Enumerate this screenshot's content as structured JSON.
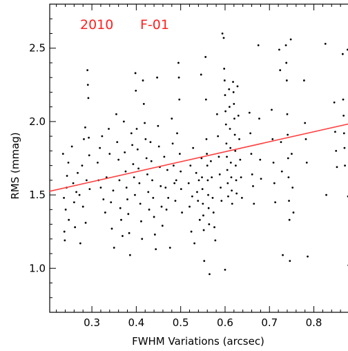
{
  "chart_data": {
    "type": "scatter",
    "title": "",
    "xlabel": "FWHM Variations (arcsec)",
    "ylabel": "RMS (mmag)",
    "xlim": [
      0.205,
      0.88
    ],
    "ylim": [
      0.7,
      2.8
    ],
    "xticks": [
      0.3,
      0.4,
      0.5,
      0.6,
      0.7,
      0.8
    ],
    "xtick_labels": [
      "0.3",
      "0.4",
      "0.5",
      "0.6",
      "0.7",
      "0.8"
    ],
    "yticks": [
      1.0,
      1.5,
      2.0,
      2.5
    ],
    "ytick_labels": [
      "1.0",
      "1.5",
      "2.0",
      "2.5"
    ],
    "grid": false,
    "annotations": [
      {
        "text": "2010",
        "color": "#ff2020"
      },
      {
        "text": "F-01",
        "color": "#ff2020"
      }
    ],
    "fit_line": {
      "color": "#ff4040",
      "x": [
        0.205,
        0.88
      ],
      "y": [
        1.525,
        1.985
      ]
    },
    "series": [
      {
        "color": "#000000",
        "points": [
          [
            0.235,
            1.78
          ],
          [
            0.237,
            1.48
          ],
          [
            0.238,
            1.25
          ],
          [
            0.239,
            1.19
          ],
          [
            0.241,
            1.4
          ],
          [
            0.243,
            1.55
          ],
          [
            0.244,
            1.63
          ],
          [
            0.247,
            1.72
          ],
          [
            0.248,
            1.33
          ],
          [
            0.255,
            1.83
          ],
          [
            0.258,
            1.58
          ],
          [
            0.26,
            1.45
          ],
          [
            0.262,
            1.28
          ],
          [
            0.265,
            1.52
          ],
          [
            0.268,
            1.65
          ],
          [
            0.272,
            1.5
          ],
          [
            0.274,
            1.17
          ],
          [
            0.278,
            1.7
          ],
          [
            0.28,
            1.42
          ],
          [
            0.282,
            1.88
          ],
          [
            0.285,
            1.96
          ],
          [
            0.286,
            1.31
          ],
          [
            0.288,
            1.6
          ],
          [
            0.29,
            2.35
          ],
          [
            0.291,
            2.25
          ],
          [
            0.292,
            2.16
          ],
          [
            0.293,
            1.89
          ],
          [
            0.294,
            1.77
          ],
          [
            0.295,
            1.54
          ],
          [
            0.313,
            1.72
          ],
          [
            0.315,
            1.6
          ],
          [
            0.318,
            1.82
          ],
          [
            0.32,
            1.55
          ],
          [
            0.323,
            1.9
          ],
          [
            0.326,
            1.47
          ],
          [
            0.33,
            1.38
          ],
          [
            0.333,
            1.62
          ],
          [
            0.338,
            1.95
          ],
          [
            0.34,
            1.78
          ],
          [
            0.343,
            1.45
          ],
          [
            0.345,
            1.27
          ],
          [
            0.348,
            1.53
          ],
          [
            0.35,
            1.14
          ],
          [
            0.355,
            2.05
          ],
          [
            0.357,
            1.86
          ],
          [
            0.36,
            1.74
          ],
          [
            0.362,
            1.6
          ],
          [
            0.364,
            1.41
          ],
          [
            0.366,
            1.33
          ],
          [
            0.369,
            1.22
          ],
          [
            0.372,
            2.0
          ],
          [
            0.374,
            1.79
          ],
          [
            0.376,
            1.66
          ],
          [
            0.378,
            1.55
          ],
          [
            0.38,
            1.47
          ],
          [
            0.382,
            1.37
          ],
          [
            0.384,
            1.24
          ],
          [
            0.386,
            1.09
          ],
          [
            0.389,
            1.92
          ],
          [
            0.391,
            1.84
          ],
          [
            0.393,
            1.71
          ],
          [
            0.395,
            1.62
          ],
          [
            0.397,
            1.5
          ],
          [
            0.398,
            2.33
          ],
          [
            0.399,
            2.21
          ],
          [
            0.401,
            1.95
          ],
          [
            0.403,
            1.81
          ],
          [
            0.405,
            1.68
          ],
          [
            0.407,
            1.58
          ],
          [
            0.409,
            1.44
          ],
          [
            0.411,
            1.32
          ],
          [
            0.413,
            1.2
          ],
          [
            0.415,
            2.28
          ],
          [
            0.417,
            2.12
          ],
          [
            0.419,
            1.99
          ],
          [
            0.421,
            1.88
          ],
          [
            0.423,
            1.75
          ],
          [
            0.425,
            1.64
          ],
          [
            0.427,
            1.52
          ],
          [
            0.429,
            1.4
          ],
          [
            0.432,
            1.86
          ],
          [
            0.434,
            1.73
          ],
          [
            0.436,
            1.6
          ],
          [
            0.438,
            1.48
          ],
          [
            0.44,
            1.35
          ],
          [
            0.442,
            1.23
          ],
          [
            0.444,
            1.13
          ],
          [
            0.447,
            2.3
          ],
          [
            0.449,
            1.97
          ],
          [
            0.451,
            1.83
          ],
          [
            0.453,
            1.69
          ],
          [
            0.455,
            1.56
          ],
          [
            0.457,
            1.42
          ],
          [
            0.459,
            1.29
          ],
          [
            0.463,
            1.76
          ],
          [
            0.466,
            1.55
          ],
          [
            0.468,
            1.4
          ],
          [
            0.47,
            1.67
          ],
          [
            0.472,
            1.48
          ],
          [
            0.476,
            1.14
          ],
          [
            0.48,
            2.02
          ],
          [
            0.482,
            1.85
          ],
          [
            0.484,
            1.7
          ],
          [
            0.486,
            1.58
          ],
          [
            0.488,
            1.46
          ],
          [
            0.49,
            1.6
          ],
          [
            0.492,
            1.92
          ],
          [
            0.495,
            2.4
          ],
          [
            0.496,
            2.3
          ],
          [
            0.497,
            2.15
          ],
          [
            0.498,
            1.78
          ],
          [
            0.5,
            1.66
          ],
          [
            0.501,
            1.54
          ],
          [
            0.503,
            1.38
          ],
          [
            0.518,
            1.58
          ],
          [
            0.52,
            1.42
          ],
          [
            0.522,
            1.7
          ],
          [
            0.524,
            1.25
          ],
          [
            0.526,
            1.49
          ],
          [
            0.528,
            1.82
          ],
          [
            0.531,
            1.17
          ],
          [
            0.535,
            1.65
          ],
          [
            0.537,
            1.52
          ],
          [
            0.539,
            1.46
          ],
          [
            0.541,
            1.6
          ],
          [
            0.543,
            1.33
          ],
          [
            0.546,
            2.32
          ],
          [
            0.547,
            1.75
          ],
          [
            0.548,
            1.62
          ],
          [
            0.549,
            1.54
          ],
          [
            0.55,
            1.44
          ],
          [
            0.551,
            1.36
          ],
          [
            0.552,
            1.26
          ],
          [
            0.553,
            1.05
          ],
          [
            0.556,
            2.44
          ],
          [
            0.557,
            2.15
          ],
          [
            0.558,
            1.88
          ],
          [
            0.559,
            1.78
          ],
          [
            0.56,
            1.7
          ],
          [
            0.561,
            1.6
          ],
          [
            0.562,
            1.5
          ],
          [
            0.563,
            1.41
          ],
          [
            0.564,
            1.3
          ],
          [
            0.565,
            0.96
          ],
          [
            0.568,
            1.73
          ],
          [
            0.57,
            1.62
          ],
          [
            0.572,
            1.48
          ],
          [
            0.574,
            1.38
          ],
          [
            0.576,
            1.28
          ],
          [
            0.578,
            1.19
          ],
          [
            0.582,
            2.05
          ],
          [
            0.584,
            1.9
          ],
          [
            0.586,
            1.76
          ],
          [
            0.588,
            1.64
          ],
          [
            0.59,
            1.55
          ],
          [
            0.592,
            1.46
          ],
          [
            0.594,
            2.6
          ],
          [
            0.597,
            2.57
          ],
          [
            0.598,
            2.36
          ],
          [
            0.599,
            2.28
          ],
          [
            0.6,
            2.18
          ],
          [
            0.601,
            2.07
          ],
          [
            0.602,
            1.98
          ],
          [
            0.603,
            1.85
          ],
          [
            0.604,
            1.76
          ],
          [
            0.605,
            1.67
          ],
          [
            0.606,
            1.58
          ],
          [
            0.607,
            1.49
          ],
          [
            0.6,
            0.99
          ],
          [
            0.609,
            2.22
          ],
          [
            0.61,
            2.1
          ],
          [
            0.611,
            1.95
          ],
          [
            0.612,
            1.82
          ],
          [
            0.613,
            1.72
          ],
          [
            0.614,
            1.62
          ],
          [
            0.615,
            1.53
          ],
          [
            0.616,
            1.44
          ],
          [
            0.618,
            2.27
          ],
          [
            0.619,
            2.2
          ],
          [
            0.62,
            2.12
          ],
          [
            0.621,
            2.02
          ],
          [
            0.622,
            1.91
          ],
          [
            0.623,
            1.8
          ],
          [
            0.624,
            1.7
          ],
          [
            0.625,
            1.6
          ],
          [
            0.626,
            1.51
          ],
          [
            0.628,
            2.24
          ],
          [
            0.63,
            2.04
          ],
          [
            0.632,
            1.88
          ],
          [
            0.634,
            1.74
          ],
          [
            0.636,
            1.62
          ],
          [
            0.638,
            1.48
          ],
          [
            0.655,
            2.06
          ],
          [
            0.657,
            1.92
          ],
          [
            0.659,
            1.78
          ],
          [
            0.661,
            1.64
          ],
          [
            0.663,
            1.56
          ],
          [
            0.665,
            1.44
          ],
          [
            0.675,
            2.52
          ],
          [
            0.677,
            2.02
          ],
          [
            0.679,
            1.74
          ],
          [
            0.681,
            1.61
          ],
          [
            0.705,
            2.08
          ],
          [
            0.707,
            1.88
          ],
          [
            0.709,
            1.72
          ],
          [
            0.711,
            1.58
          ],
          [
            0.713,
            1.45
          ],
          [
            0.722,
            2.49
          ],
          [
            0.724,
            2.35
          ],
          [
            0.726,
            1.86
          ],
          [
            0.728,
            1.66
          ],
          [
            0.73,
            1.09
          ],
          [
            0.737,
            2.52
          ],
          [
            0.738,
            2.4
          ],
          [
            0.739,
            2.28
          ],
          [
            0.74,
            2.05
          ],
          [
            0.741,
            1.91
          ],
          [
            0.742,
            1.75
          ],
          [
            0.743,
            1.62
          ],
          [
            0.744,
            1.46
          ],
          [
            0.745,
            1.33
          ],
          [
            0.746,
            1.05
          ],
          [
            0.748,
            2.56
          ],
          [
            0.75,
            1.78
          ],
          [
            0.752,
            1.55
          ],
          [
            0.754,
            1.38
          ],
          [
            0.778,
            2.28
          ],
          [
            0.78,
            1.99
          ],
          [
            0.782,
            1.88
          ],
          [
            0.784,
            1.72
          ],
          [
            0.786,
            1.08
          ],
          [
            0.826,
            2.53
          ],
          [
            0.828,
            1.5
          ],
          [
            0.846,
            2.13
          ],
          [
            0.848,
            1.93
          ],
          [
            0.85,
            1.8
          ],
          [
            0.852,
            1.69
          ],
          [
            0.865,
            2.46
          ],
          [
            0.866,
            2.15
          ],
          [
            0.867,
            2.04
          ],
          [
            0.868,
            1.92
          ],
          [
            0.869,
            1.82
          ],
          [
            0.87,
            1.7
          ],
          [
            0.876,
            2.49
          ],
          [
            0.877,
            1.49
          ],
          [
            0.878,
            1.02
          ]
        ]
      }
    ]
  }
}
